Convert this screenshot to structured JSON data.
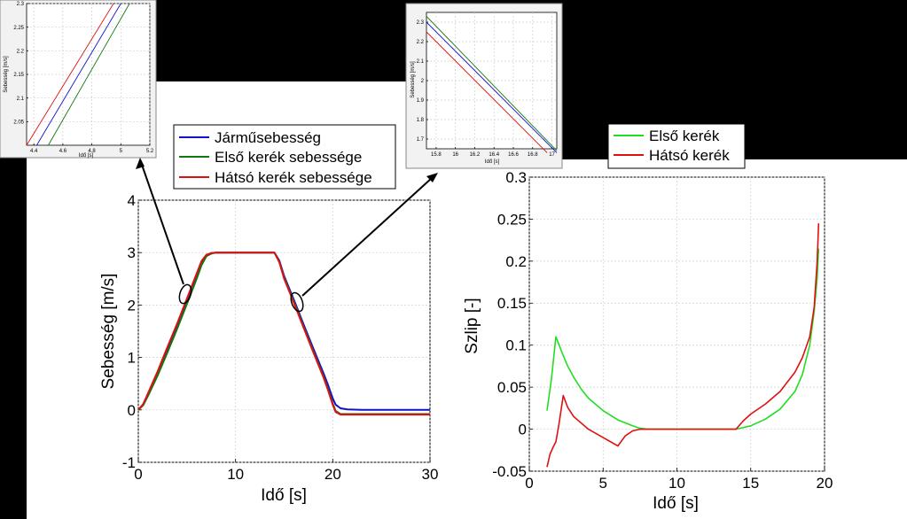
{
  "chart_data": [
    {
      "type": "line",
      "xlabel": "Idő [s]",
      "ylabel": "Sebesség [m/s]",
      "xlim": [
        0,
        30
      ],
      "ylim": [
        -1,
        4
      ],
      "xticks": [
        "0",
        "10",
        "20",
        "30"
      ],
      "yticks": [
        "-1",
        "0",
        "1",
        "2",
        "3",
        "4"
      ],
      "grid": true,
      "legend_position": "top",
      "series": [
        {
          "name": "Járműsebesség",
          "color": "#1111cc",
          "x": [
            0,
            0.5,
            1,
            2,
            3,
            4,
            5,
            6,
            6.5,
            7,
            7.5,
            8,
            14,
            14.5,
            15,
            16,
            17,
            18,
            19,
            19.5,
            20,
            20.3,
            20.8,
            21.5,
            23,
            30
          ],
          "y": [
            0,
            0.1,
            0.3,
            0.7,
            1.15,
            1.6,
            2.07,
            2.55,
            2.8,
            2.95,
            2.99,
            3.0,
            3.0,
            2.85,
            2.55,
            2.1,
            1.63,
            1.17,
            0.72,
            0.48,
            0.22,
            0.1,
            0.03,
            0.01,
            0.0,
            0.0
          ]
        },
        {
          "name": "Első kerék sebessége",
          "color": "#117711",
          "x": [
            0,
            0.5,
            1,
            2,
            3,
            4,
            5,
            6,
            6.5,
            7,
            7.5,
            8,
            14,
            14.5,
            15,
            16,
            17,
            18,
            19,
            19.5,
            20,
            20.3,
            20.8,
            21.5,
            23,
            30
          ],
          "y": [
            0,
            0.09,
            0.27,
            0.66,
            1.1,
            1.55,
            2.02,
            2.5,
            2.76,
            2.93,
            2.98,
            3.0,
            3.0,
            2.83,
            2.52,
            2.06,
            1.59,
            1.12,
            0.66,
            0.4,
            0.12,
            -0.02,
            -0.08,
            -0.08,
            -0.08,
            -0.08
          ]
        },
        {
          "name": "Hátsó kerék sebessége",
          "color": "#dd1111",
          "x": [
            0,
            0.5,
            1,
            2,
            3,
            4,
            5,
            6,
            6.5,
            7,
            7.5,
            8,
            14,
            14.5,
            15,
            16,
            17,
            18,
            19,
            19.5,
            20,
            20.3,
            20.8,
            21.5,
            23,
            30
          ],
          "y": [
            0,
            0.11,
            0.32,
            0.74,
            1.2,
            1.65,
            2.12,
            2.6,
            2.84,
            2.96,
            2.99,
            3.0,
            3.0,
            2.82,
            2.5,
            2.04,
            1.57,
            1.1,
            0.64,
            0.38,
            0.1,
            -0.04,
            -0.09,
            -0.09,
            -0.09,
            -0.09
          ]
        }
      ]
    },
    {
      "type": "line",
      "xlabel": "Idő [s]",
      "ylabel": "Szlip [-]",
      "xlim": [
        0,
        20
      ],
      "ylim": [
        -0.05,
        0.3
      ],
      "xticks": [
        "0",
        "5",
        "10",
        "15",
        "20"
      ],
      "yticks": [
        "-0.05",
        "0",
        "0.05",
        "0.1",
        "0.15",
        "0.2",
        "0.25",
        "0.3"
      ],
      "grid": true,
      "legend_position": "top-left",
      "series": [
        {
          "name": "Első kerék",
          "color": "#22dd22",
          "x": [
            1.2,
            1.5,
            1.8,
            2.2,
            2.6,
            3,
            3.5,
            4,
            5,
            6,
            7,
            7.5,
            8,
            10,
            14,
            15,
            16,
            17,
            18,
            18.5,
            19,
            19.3,
            19.5,
            19.6
          ],
          "y": [
            0.022,
            0.06,
            0.11,
            0.092,
            0.075,
            0.062,
            0.048,
            0.037,
            0.022,
            0.011,
            0.004,
            0.001,
            0.0,
            0.0,
            0.0,
            0.004,
            0.012,
            0.024,
            0.045,
            0.065,
            0.1,
            0.14,
            0.18,
            0.215
          ]
        },
        {
          "name": "Hátsó kerék",
          "color": "#dd1111",
          "x": [
            1.2,
            1.4,
            1.6,
            1.8,
            2.0,
            2.3,
            2.6,
            3,
            4,
            5,
            6,
            6.5,
            7,
            7.5,
            8,
            10,
            14,
            14.5,
            15,
            16,
            17,
            18,
            18.5,
            19,
            19.3,
            19.5,
            19.6
          ],
          "y": [
            -0.045,
            -0.03,
            -0.022,
            -0.015,
            0.005,
            0.04,
            0.026,
            0.015,
            0.0,
            -0.01,
            -0.02,
            -0.008,
            -0.002,
            0.0,
            0.0,
            0.0,
            0.0,
            0.01,
            0.018,
            0.03,
            0.045,
            0.068,
            0.085,
            0.11,
            0.145,
            0.2,
            0.245
          ]
        }
      ]
    },
    {
      "type": "line",
      "ylabel": "Sebesség [m/s]",
      "xlabel": "Idő [s]",
      "xlim": [
        4.35,
        5.2
      ],
      "ylim": [
        2.0,
        2.3
      ],
      "xticks": [
        "4.4",
        "4.6",
        "4.8",
        "5",
        "5.2"
      ],
      "yticks": [
        "2.05",
        "2.1",
        "2.15",
        "2.2",
        "2.25",
        "2.3"
      ],
      "grid": true,
      "series": [
        {
          "color": "#dd1111",
          "x": [
            4.35,
            4.95
          ],
          "y": [
            2.0,
            2.3
          ]
        },
        {
          "color": "#1111cc",
          "x": [
            4.42,
            5.0
          ],
          "y": [
            2.0,
            2.3
          ]
        },
        {
          "color": "#117711",
          "x": [
            4.5,
            5.06
          ],
          "y": [
            2.0,
            2.3
          ]
        }
      ]
    },
    {
      "type": "line",
      "ylabel": "Sebesség [m/s]",
      "xlabel": "Idő [s]",
      "xlim": [
        15.7,
        17.05
      ],
      "ylim": [
        1.65,
        2.35
      ],
      "xticks": [
        "15.8",
        "16",
        "16.2",
        "16.4",
        "16.6",
        "16.8",
        "17"
      ],
      "yticks": [
        "1.7",
        "1.8",
        "1.9",
        "2",
        "2.1",
        "2.2",
        "2.3"
      ],
      "grid": true,
      "series": [
        {
          "color": "#117711",
          "x": [
            15.7,
            17.05
          ],
          "y": [
            2.33,
            1.64
          ]
        },
        {
          "color": "#1111cc",
          "x": [
            15.7,
            17.05
          ],
          "y": [
            2.3,
            1.63
          ]
        },
        {
          "color": "#dd1111",
          "x": [
            15.7,
            16.95
          ],
          "y": [
            2.25,
            1.63
          ]
        }
      ]
    }
  ],
  "legend_main": {
    "items": [
      "Járműsebesség",
      "Első kerék sebessége",
      "Hátsó kerék sebessége"
    ],
    "colors": [
      "#1111cc",
      "#117711",
      "#dd1111"
    ]
  },
  "legend_slip": {
    "items": [
      "Első kerék",
      "Hátsó kerék"
    ],
    "colors": [
      "#22dd22",
      "#dd1111"
    ]
  }
}
